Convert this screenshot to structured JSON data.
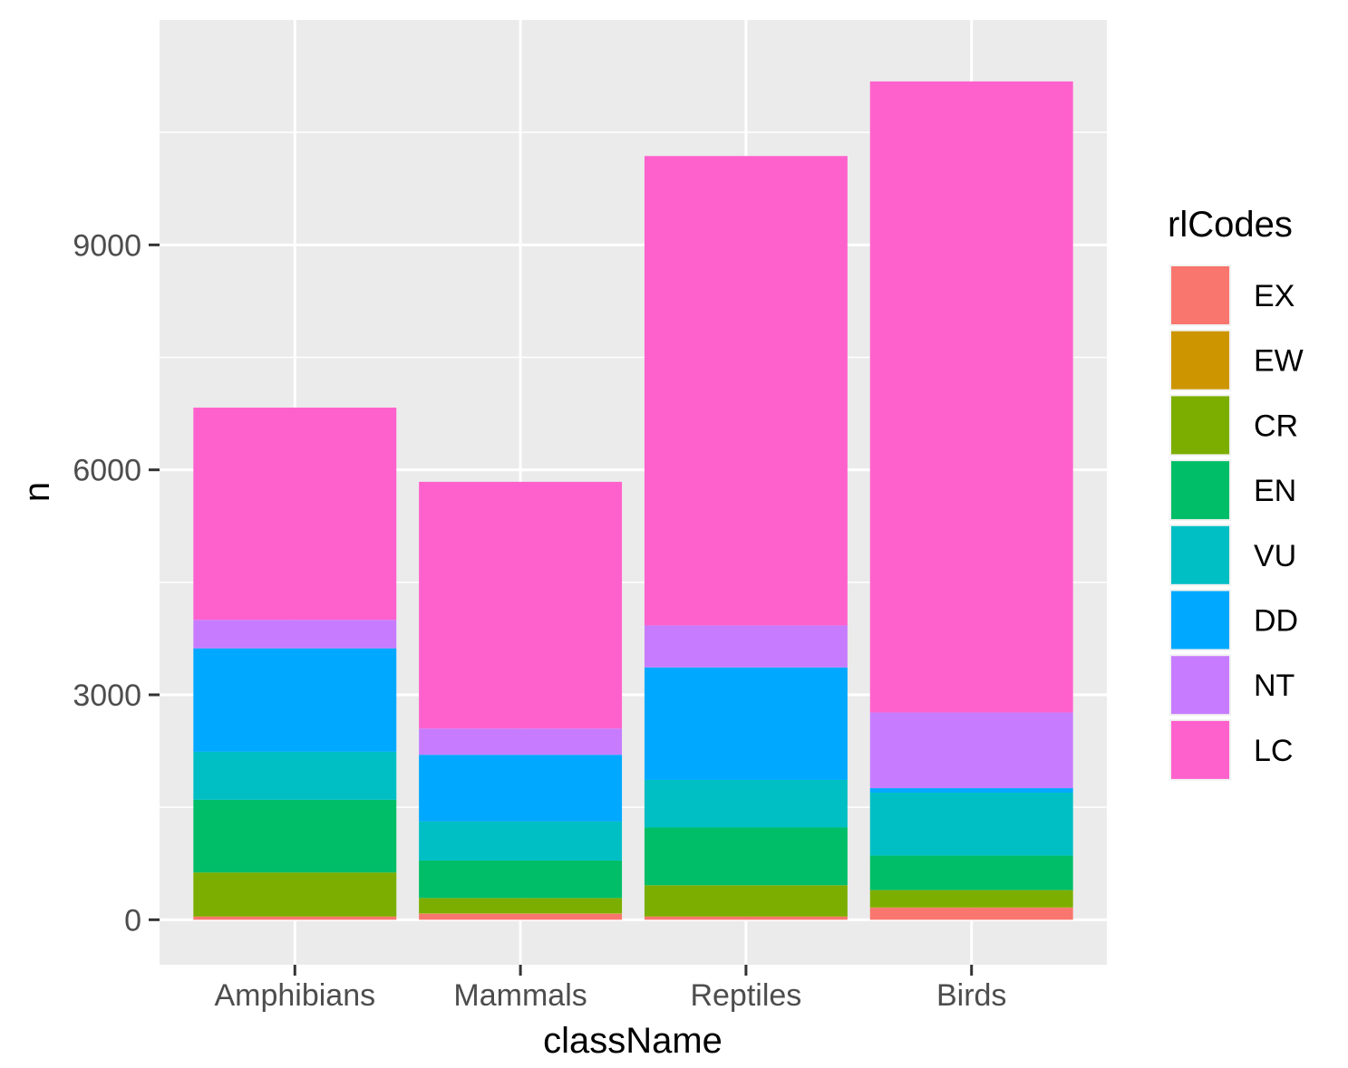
{
  "chart_data": {
    "type": "bar",
    "stacked": true,
    "xlabel": "className",
    "ylabel": "n",
    "ylim": [
      -600,
      12000
    ],
    "yticks": [
      0,
      3000,
      6000,
      9000
    ],
    "y_tick_labels": [
      "0",
      "3000",
      "6000",
      "9000"
    ],
    "grid": true,
    "legend_position": "right",
    "legend_title": "rlCodes",
    "categories": [
      "Amphibians",
      "Mammals",
      "Reptiles",
      "Birds"
    ],
    "series": [
      {
        "name": "EX",
        "color": "#F8766D",
        "values": [
          40,
          80,
          40,
          160
        ]
      },
      {
        "name": "EW",
        "color": "#CD9600",
        "values": [
          5,
          5,
          5,
          5
        ]
      },
      {
        "name": "CR",
        "color": "#7CAE00",
        "values": [
          585,
          205,
          415,
          230
        ]
      },
      {
        "name": "EN",
        "color": "#00BE67",
        "values": [
          970,
          500,
          770,
          460
        ]
      },
      {
        "name": "VU",
        "color": "#00BFC4",
        "values": [
          640,
          520,
          635,
          840
        ]
      },
      {
        "name": "DD",
        "color": "#00A9FF",
        "values": [
          1380,
          890,
          1500,
          60
        ]
      },
      {
        "name": "NT",
        "color": "#C77CFF",
        "values": [
          380,
          350,
          560,
          1010
        ]
      },
      {
        "name": "LC",
        "color": "#FF61CC",
        "values": [
          2830,
          3290,
          6260,
          8415
        ]
      }
    ]
  }
}
